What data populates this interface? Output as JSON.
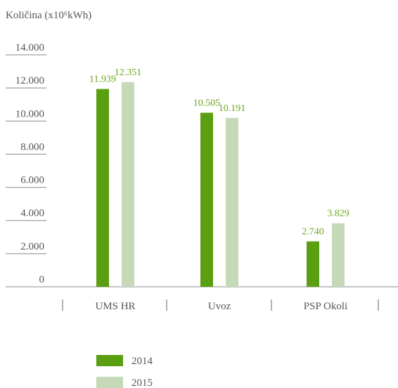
{
  "chart_data": {
    "type": "bar",
    "title": "Količina (x10⁶kWh)",
    "categories": [
      "UMS HR",
      "Uvoz",
      "PSP Okoli"
    ],
    "series": [
      {
        "name": "2014",
        "color": "#5a9e12",
        "values": [
          11939,
          10505,
          2740
        ],
        "value_labels": [
          "11.939",
          "10.505",
          "2.740"
        ]
      },
      {
        "name": "2015",
        "color": "#c5d9b8",
        "values": [
          12351,
          10191,
          3829
        ],
        "value_labels": [
          "12.351",
          "10.191",
          "3.829"
        ]
      }
    ],
    "ylim": [
      0,
      14000
    ],
    "yticks": [
      0,
      {
        "value": 2000,
        "label": "2.000"
      },
      {
        "value": 4000,
        "label": "4.000"
      },
      {
        "value": 6000,
        "label": "6.000"
      },
      {
        "value": 8000,
        "label": "8.000"
      },
      {
        "value": 10000,
        "label": "10.000"
      },
      {
        "value": 12000,
        "label": "12.000"
      },
      {
        "value": 14000,
        "label": "14.000"
      }
    ]
  }
}
